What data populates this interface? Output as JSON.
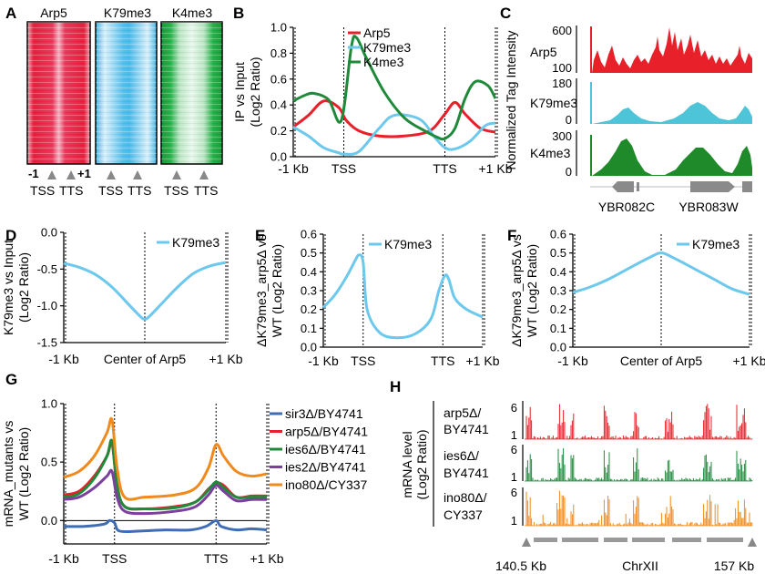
{
  "colors": {
    "arp5": "#e8202a",
    "k79me3": "#6cc8ec",
    "k4me3": "#1f8a3a",
    "sir3": "#3f6db5",
    "ies6": "#1f8a3a",
    "ies2": "#7b3f9e",
    "ino80": "#f08a1c",
    "gene": "#8a8a8a"
  },
  "panels": {
    "A": {
      "letter": "A",
      "headers": [
        "Arp5",
        "K79me3",
        "K4me3"
      ],
      "ticks": {
        "left": "-1",
        "right": "+1",
        "tss": "TSS",
        "tts": "TTS"
      }
    },
    "B": {
      "letter": "B"
    },
    "C": {
      "letter": "C",
      "ylabel": "Normalized Tag Intensity",
      "tracks": [
        {
          "name": "Arp5",
          "top": "600",
          "bottom": "100"
        },
        {
          "name": "K79me3",
          "top": "180",
          "bottom": "0"
        },
        {
          "name": "K4me3",
          "top": "300",
          "bottom": "0"
        }
      ],
      "genes": [
        "YBR082C",
        "YBR083W"
      ]
    },
    "D": {
      "letter": "D"
    },
    "E": {
      "letter": "E"
    },
    "F": {
      "letter": "F"
    },
    "G": {
      "letter": "G"
    },
    "H": {
      "letter": "H",
      "ylabel": [
        "mRNA level",
        "(Log2 Ratio)"
      ],
      "tracks": [
        {
          "name": [
            "arp5Δ/",
            "BY4741"
          ],
          "top": "6",
          "bottom": "1"
        },
        {
          "name": [
            "ies6Δ/",
            "BY4741"
          ],
          "top": "6",
          "bottom": "1"
        },
        {
          "name": [
            "ino80Δ/",
            "CY337"
          ],
          "top": "6",
          "bottom": "1"
        }
      ],
      "xleft": "140.5 Kb",
      "xcenter": "ChrXII",
      "xright": "157 Kb"
    }
  },
  "chart_data": [
    {
      "panel": "B",
      "type": "line",
      "ylabel": [
        "IP vs Input",
        "(Log2 Ratio)"
      ],
      "x_tick_labels": [
        "-1 Kb",
        "TSS",
        "TTS",
        "+1 Kb"
      ],
      "x_tick_positions": [
        0,
        1,
        3,
        4
      ],
      "xlim": [
        0,
        4
      ],
      "ylim": [
        0,
        1.0
      ],
      "yticks": [
        "0.0",
        "0.2",
        "0.4",
        "0.6",
        "0.8",
        "1.0"
      ],
      "ytick_values": [
        0,
        0.2,
        0.4,
        0.6,
        0.8,
        1.0
      ],
      "legend": [
        "Arp5",
        "K79me3",
        "K4me3"
      ],
      "series": [
        {
          "name": "Arp5",
          "color_key": "arp5",
          "x": [
            0,
            0.3,
            0.6,
            0.9,
            1.05,
            1.3,
            1.7,
            2.2,
            2.7,
            3.0,
            3.2,
            3.4,
            3.7,
            4.0
          ],
          "y": [
            0.23,
            0.32,
            0.43,
            0.38,
            0.28,
            0.2,
            0.16,
            0.16,
            0.2,
            0.33,
            0.42,
            0.33,
            0.22,
            0.19
          ]
        },
        {
          "name": "K79me3",
          "color_key": "k79me3",
          "x": [
            0,
            0.3,
            0.6,
            0.9,
            1.0,
            1.3,
            1.7,
            2.0,
            2.5,
            2.8,
            3.0,
            3.2,
            3.5,
            3.8,
            4.0
          ],
          "y": [
            0.23,
            0.16,
            0.07,
            0.03,
            0.02,
            0.04,
            0.22,
            0.32,
            0.29,
            0.15,
            0.07,
            0.06,
            0.12,
            0.24,
            0.26
          ]
        },
        {
          "name": "K4me3",
          "color_key": "k4me3",
          "x": [
            0,
            0.2,
            0.4,
            0.7,
            0.95,
            1.15,
            1.25,
            1.45,
            1.8,
            2.2,
            2.6,
            2.85,
            3.0,
            3.2,
            3.4,
            3.6,
            3.85,
            4.0
          ],
          "y": [
            0.43,
            0.47,
            0.49,
            0.44,
            0.28,
            0.85,
            0.92,
            0.76,
            0.5,
            0.3,
            0.2,
            0.15,
            0.14,
            0.22,
            0.45,
            0.58,
            0.55,
            0.45
          ]
        }
      ]
    },
    {
      "panel": "D",
      "type": "line",
      "ylabel": [
        "K79me3 vs Input",
        "(Log2 Ratio)"
      ],
      "x_tick_labels": [
        "-1 Kb",
        "Center of Arp5",
        "+1 Kb"
      ],
      "x_tick_positions": [
        0,
        1,
        2
      ],
      "xlim": [
        0,
        2
      ],
      "ylim": [
        -1.5,
        0.0
      ],
      "yticks": [
        "0.0",
        "-0.5",
        "-1.0",
        "-1.5"
      ],
      "ytick_values": [
        0,
        -0.5,
        -1.0,
        -1.5
      ],
      "legend": [
        "K79me3"
      ],
      "series": [
        {
          "name": "K79me3",
          "color_key": "k79me3",
          "x": [
            0,
            0.2,
            0.4,
            0.6,
            0.8,
            0.95,
            1.0,
            1.05,
            1.2,
            1.4,
            1.6,
            1.8,
            2.0
          ],
          "y": [
            -0.42,
            -0.48,
            -0.58,
            -0.75,
            -0.98,
            -1.15,
            -1.18,
            -1.15,
            -0.98,
            -0.75,
            -0.56,
            -0.46,
            -0.41
          ]
        }
      ]
    },
    {
      "panel": "E",
      "type": "line",
      "ylabel": [
        "ΔK79me3_arp5Δ vs",
        "WT (Log2 Ratio)"
      ],
      "x_tick_labels": [
        "-1 Kb",
        "TSS",
        "TTS",
        "+1 Kb"
      ],
      "x_tick_positions": [
        0,
        1,
        3,
        4
      ],
      "xlim": [
        0,
        4
      ],
      "ylim": [
        0,
        0.6
      ],
      "yticks": [
        "0.0",
        "0.1",
        "0.2",
        "0.3",
        "0.4",
        "0.5",
        "0.6"
      ],
      "ytick_values": [
        0,
        0.1,
        0.2,
        0.3,
        0.4,
        0.5,
        0.6
      ],
      "legend": [
        "K79me3"
      ],
      "series": [
        {
          "name": "K79me3",
          "color_key": "k79me3",
          "x": [
            0,
            0.3,
            0.6,
            0.8,
            0.9,
            1.0,
            1.1,
            1.4,
            1.8,
            2.3,
            2.7,
            2.9,
            3.05,
            3.15,
            3.3,
            3.6,
            4.0
          ],
          "y": [
            0.21,
            0.28,
            0.38,
            0.46,
            0.49,
            0.45,
            0.2,
            0.08,
            0.05,
            0.07,
            0.15,
            0.3,
            0.38,
            0.36,
            0.26,
            0.2,
            0.16
          ]
        }
      ]
    },
    {
      "panel": "F",
      "type": "line",
      "ylabel": [
        "ΔK79me3_arp5Δ vs",
        "WT (Log2 Ratio)"
      ],
      "x_tick_labels": [
        "-1 Kb",
        "Center of Arp5",
        "+1 Kb"
      ],
      "x_tick_positions": [
        0,
        1,
        2
      ],
      "xlim": [
        0,
        2
      ],
      "ylim": [
        0,
        0.6
      ],
      "yticks": [
        "0.0",
        "0.1",
        "0.2",
        "0.3",
        "0.4",
        "0.5",
        "0.6"
      ],
      "ytick_values": [
        0,
        0.1,
        0.2,
        0.3,
        0.4,
        0.5,
        0.6
      ],
      "legend": [
        "K79me3"
      ],
      "series": [
        {
          "name": "K79me3",
          "color_key": "k79me3",
          "x": [
            0,
            0.2,
            0.4,
            0.6,
            0.8,
            0.95,
            1.0,
            1.05,
            1.2,
            1.4,
            1.6,
            1.8,
            2.0
          ],
          "y": [
            0.29,
            0.32,
            0.36,
            0.41,
            0.46,
            0.495,
            0.5,
            0.495,
            0.46,
            0.41,
            0.36,
            0.31,
            0.28
          ]
        }
      ]
    },
    {
      "panel": "G",
      "type": "line",
      "ylabel": [
        "mRNA_mutants vs",
        "WT (Log2 Ratio)"
      ],
      "x_tick_labels": [
        "-1 Kb",
        "TSS",
        "TTS",
        "+1 Kb"
      ],
      "x_tick_positions": [
        0,
        1,
        3,
        4
      ],
      "xlim": [
        0,
        4
      ],
      "ylim": [
        -0.2,
        1.0
      ],
      "yticks": [
        "0.0",
        "0.5",
        "1.0"
      ],
      "ytick_values": [
        0,
        0.5,
        1.0
      ],
      "legend": [
        "sir3Δ/BY4741",
        "arp5Δ/BY4741",
        "ies6Δ/BY4741",
        "ies2Δ/BY4741",
        "ino80Δ/CY337"
      ],
      "series": [
        {
          "name": "sir3Δ/BY4741",
          "color_key": "sir3",
          "x": [
            0,
            0.4,
            0.8,
            0.9,
            1.0,
            1.1,
            1.5,
            2.0,
            2.5,
            2.8,
            3.0,
            3.1,
            3.4,
            3.7,
            4.0
          ],
          "y": [
            -0.05,
            -0.05,
            -0.03,
            0.0,
            -0.02,
            -0.09,
            -0.09,
            -0.08,
            -0.08,
            -0.05,
            0.0,
            -0.05,
            -0.08,
            -0.07,
            -0.08
          ]
        },
        {
          "name": "arp5Δ/BY4741",
          "color_key": "arp5",
          "x": [
            0,
            0.3,
            0.6,
            0.85,
            0.95,
            1.05,
            1.2,
            1.6,
            2.2,
            2.6,
            2.85,
            3.0,
            3.15,
            3.4,
            3.7,
            4.0
          ],
          "y": [
            0.22,
            0.25,
            0.38,
            0.55,
            0.66,
            0.3,
            0.12,
            0.1,
            0.12,
            0.16,
            0.27,
            0.32,
            0.3,
            0.2,
            0.21,
            0.21
          ]
        },
        {
          "name": "ies6Δ/BY4741",
          "color_key": "ies6",
          "x": [
            0,
            0.3,
            0.6,
            0.85,
            0.95,
            1.05,
            1.2,
            1.6,
            2.2,
            2.6,
            2.85,
            3.0,
            3.15,
            3.4,
            3.7,
            4.0
          ],
          "y": [
            0.2,
            0.23,
            0.36,
            0.55,
            0.68,
            0.3,
            0.12,
            0.1,
            0.11,
            0.16,
            0.26,
            0.33,
            0.28,
            0.2,
            0.2,
            0.2
          ]
        },
        {
          "name": "ies2Δ/BY4741",
          "color_key": "ies2",
          "x": [
            0,
            0.3,
            0.6,
            0.85,
            0.95,
            1.05,
            1.2,
            1.6,
            2.2,
            2.6,
            2.85,
            3.0,
            3.15,
            3.4,
            3.7,
            4.0
          ],
          "y": [
            0.18,
            0.2,
            0.28,
            0.38,
            0.42,
            0.2,
            0.08,
            0.06,
            0.08,
            0.12,
            0.22,
            0.3,
            0.25,
            0.17,
            0.18,
            0.18
          ]
        },
        {
          "name": "ino80Δ/CY337",
          "color_key": "ino80",
          "x": [
            0,
            0.3,
            0.6,
            0.85,
            0.95,
            1.05,
            1.2,
            1.6,
            2.2,
            2.6,
            2.85,
            3.0,
            3.15,
            3.4,
            3.7,
            4.0
          ],
          "y": [
            0.37,
            0.42,
            0.55,
            0.75,
            0.86,
            0.45,
            0.2,
            0.2,
            0.22,
            0.28,
            0.45,
            0.65,
            0.55,
            0.42,
            0.38,
            0.4
          ]
        }
      ]
    }
  ]
}
